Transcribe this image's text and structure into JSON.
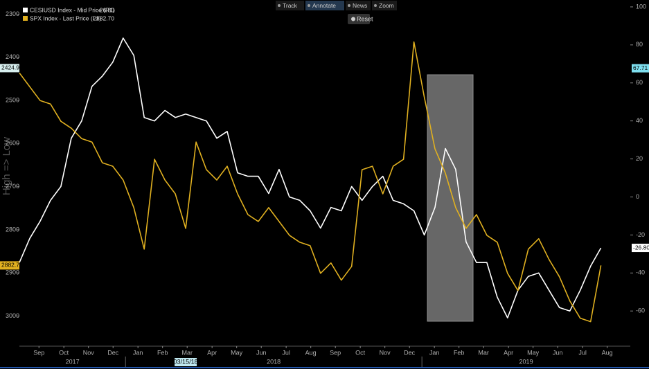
{
  "chart_data": {
    "type": "line",
    "y_label": "High => Low",
    "x": [
      2017.642,
      2017.677,
      2017.712,
      2017.747,
      2017.782,
      2017.817,
      2017.852,
      2017.887,
      2017.922,
      2017.957,
      2017.992,
      2018.028,
      2018.063,
      2018.098,
      2018.133,
      2018.168,
      2018.203,
      2018.238,
      2018.273,
      2018.308,
      2018.343,
      2018.378,
      2018.413,
      2018.448,
      2018.483,
      2018.518,
      2018.553,
      2018.588,
      2018.623,
      2018.658,
      2018.693,
      2018.728,
      2018.763,
      2018.798,
      2018.833,
      2018.868,
      2018.903,
      2018.938,
      2018.973,
      2019.008,
      2019.044,
      2019.079,
      2019.114,
      2019.149,
      2019.184,
      2019.219,
      2019.254,
      2019.289,
      2019.324,
      2019.359,
      2019.394,
      2019.429,
      2019.464,
      2019.499,
      2019.534,
      2019.569,
      2019.604
    ],
    "series": [
      {
        "name": "CESIUSD Index - Mid Price (R1)",
        "legend_value": "-26.80",
        "color": "#ffffff",
        "axis": "y2",
        "values": [
          -34.5,
          -21.8,
          -12.7,
          -1.8,
          5.5,
          30.9,
          40.0,
          58.2,
          63.6,
          70.9,
          83.6,
          74.5,
          41.8,
          40.0,
          45.5,
          41.8,
          43.6,
          41.8,
          40.0,
          30.9,
          34.5,
          12.7,
          10.9,
          10.9,
          1.8,
          14.5,
          0,
          -1.8,
          -7.3,
          -16.4,
          -5.5,
          -7.3,
          5.5,
          -1.8,
          5.5,
          10.9,
          -1.8,
          -3.6,
          -7.3,
          -20.0,
          -5.5,
          25.5,
          14.5,
          -23.6,
          -34.5,
          -34.5,
          -52.7,
          -63.6,
          -49.1,
          -41.8,
          -40.0,
          -49.1,
          -58.2,
          -60.0,
          -49.1,
          -36.4,
          -26.8
        ]
      },
      {
        "name": "SPX Index - Last Price (L1)",
        "legend_value": "2882.70",
        "color": "#e0b020",
        "axis": "y",
        "values": [
          2436.2,
          2468.3,
          2500.3,
          2508.3,
          2548.4,
          2564.4,
          2588.5,
          2596.5,
          2644.6,
          2652.6,
          2684.6,
          2748.7,
          2844.9,
          2636.5,
          2684.6,
          2716.7,
          2796.8,
          2596.5,
          2660.6,
          2684.6,
          2652.6,
          2716.7,
          2764.8,
          2780.8,
          2748.7,
          2780.8,
          2812.8,
          2828.9,
          2836.9,
          2901.0,
          2876.9,
          2917.0,
          2885.0,
          2660.6,
          2652.6,
          2716.7,
          2652.6,
          2636.5,
          2364.1,
          2492.3,
          2612.5,
          2668.6,
          2748.7,
          2796.8,
          2764.8,
          2812.8,
          2828.9,
          2901.0,
          2941.0,
          2844.9,
          2820.8,
          2868.9,
          2909.0,
          2965.1,
          3005.1,
          3013.2,
          2882.7
        ]
      }
    ],
    "xlim": [
      2017.642,
      2019.703
    ],
    "xticks": [
      {
        "value": 2017.708,
        "label": "Sep"
      },
      {
        "value": 2017.792,
        "label": "Oct"
      },
      {
        "value": 2017.875,
        "label": "Nov"
      },
      {
        "value": 2017.958,
        "label": "Dec"
      },
      {
        "value": 2018.042,
        "label": "Jan"
      },
      {
        "value": 2018.125,
        "label": "Feb"
      },
      {
        "value": 2018.208,
        "label": "Mar"
      },
      {
        "value": 2018.292,
        "label": "Apr"
      },
      {
        "value": 2018.375,
        "label": "May"
      },
      {
        "value": 2018.458,
        "label": "Jun"
      },
      {
        "value": 2018.542,
        "label": "Jul"
      },
      {
        "value": 2018.625,
        "label": "Aug"
      },
      {
        "value": 2018.708,
        "label": "Sep"
      },
      {
        "value": 2018.792,
        "label": "Oct"
      },
      {
        "value": 2018.875,
        "label": "Nov"
      },
      {
        "value": 2018.958,
        "label": "Dec"
      },
      {
        "value": 2019.042,
        "label": "Jan"
      },
      {
        "value": 2019.125,
        "label": "Feb"
      },
      {
        "value": 2019.208,
        "label": "Mar"
      },
      {
        "value": 2019.292,
        "label": "Apr"
      },
      {
        "value": 2019.375,
        "label": "May"
      },
      {
        "value": 2019.458,
        "label": "Jun"
      },
      {
        "value": 2019.542,
        "label": "Jul"
      },
      {
        "value": 2019.625,
        "label": "Aug"
      }
    ],
    "x_years": [
      2017,
      2018,
      2019
    ],
    "cursor_date": {
      "value": 2018.203,
      "label": "03/15/18"
    },
    "ylim": [
      3070,
      2275
    ],
    "yticks": [
      2300,
      2400,
      2500,
      2600,
      2700,
      2800,
      2900,
      3000
    ],
    "y2lim": [
      -78.5,
      101.8
    ],
    "y2ticks": [
      100,
      80,
      60,
      40,
      20,
      0,
      -20,
      -40,
      -60
    ],
    "y_tags": [
      2424.99,
      {
        "value": 2882.7,
        "label": "2882.70"
      }
    ],
    "y_tag_colors": [
      "#d8f0f0",
      "#e0b020"
    ],
    "y2_tags": [
      67.71,
      {
        "value": -26.8,
        "label": "-26.80"
      }
    ],
    "y2_tag_colors": [
      "#7fe0f0",
      "#ffffff"
    ],
    "grid": false,
    "toolbar": {
      "buttons": [
        "Track",
        "Annotate",
        "News",
        "Zoom"
      ],
      "active": 1,
      "reset": "Reset"
    }
  }
}
